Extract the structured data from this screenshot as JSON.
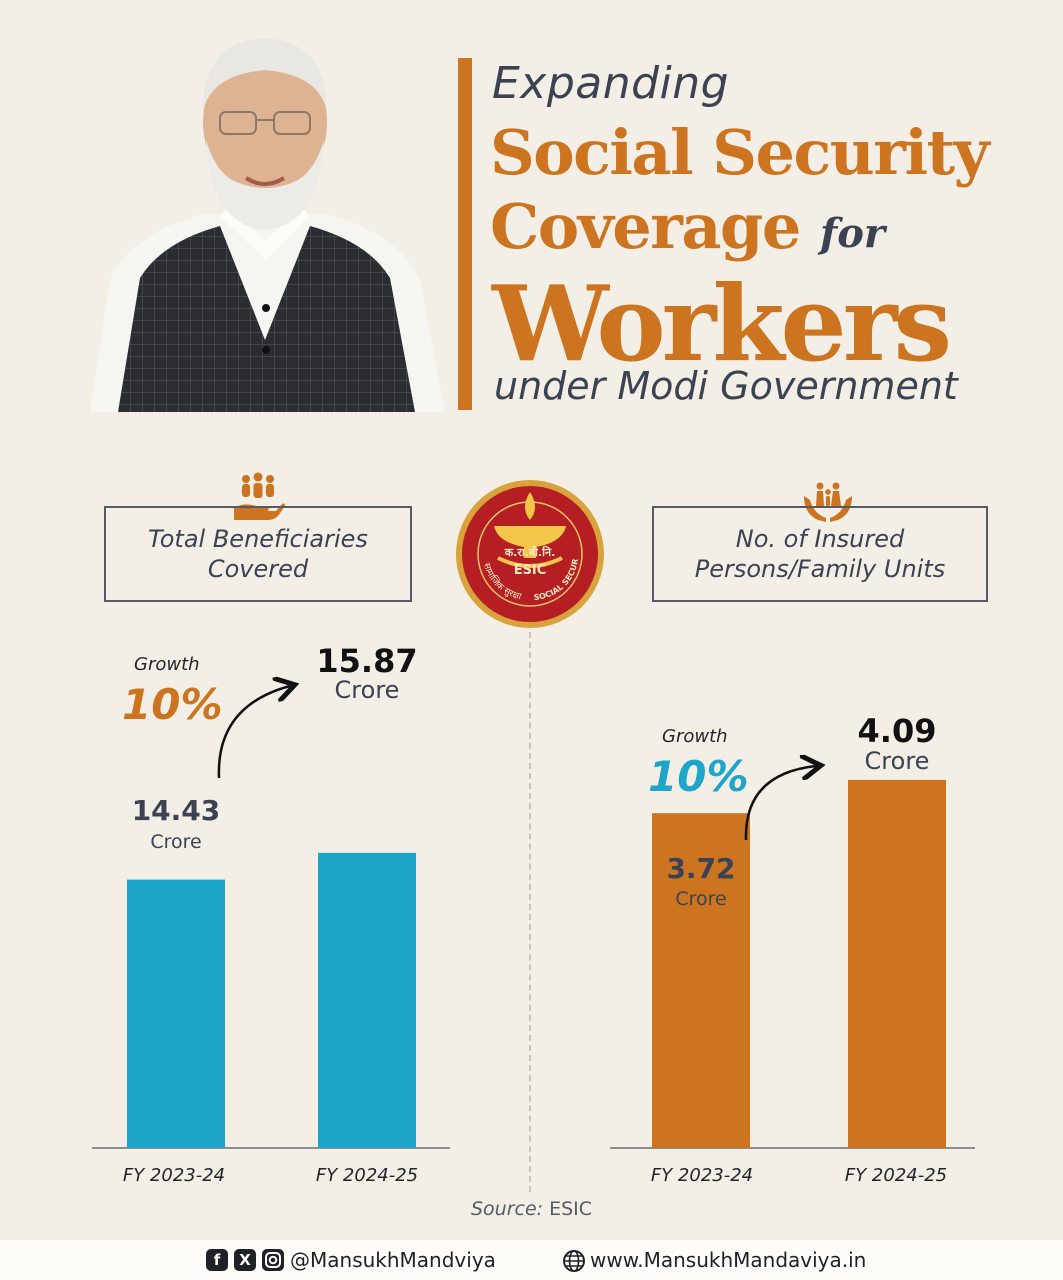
{
  "header": {
    "line1": "Expanding",
    "line2": "Social Security",
    "line3": "Coverage",
    "line3_suffix": "for",
    "line4": "Workers",
    "line5": "under Modi Government"
  },
  "logo": {
    "text_hindi_top": "क.रा.बी.नि.",
    "text_center": "ESIC",
    "text_left": "सामाजिक सुरक्षा",
    "text_right": "SOCIAL SECURITY"
  },
  "panels": [
    {
      "label": "Total Beneficiaries Covered",
      "label_line1": "Total Beneficiaries",
      "label_line2": "Covered",
      "growth_word": "Growth",
      "growth_pct": "10%",
      "growth_color": "#cd7420",
      "bar_color": "#1da6c9",
      "unit": "Crore",
      "values_text": [
        "14.43",
        "15.87"
      ]
    },
    {
      "label": "No. of Insured Persons/Family Units",
      "label_line1": "No. of Insured",
      "label_line2": "Persons/Family Units",
      "growth_word": "Growth",
      "growth_pct": "10%",
      "growth_color": "#1da6c9",
      "bar_color": "#cd7420",
      "unit": "Crore",
      "values_text": [
        "3.72",
        "4.09"
      ]
    }
  ],
  "chart_data": [
    {
      "type": "bar",
      "categories": [
        "FY 2023-24",
        "FY 2024-25"
      ],
      "values": [
        14.43,
        15.87
      ],
      "title": "Total Beneficiaries Covered",
      "ylabel": "Crore",
      "color": "#1da6c9"
    },
    {
      "type": "bar",
      "categories": [
        "FY 2023-24",
        "FY 2024-25"
      ],
      "values": [
        3.72,
        4.09
      ],
      "title": "No. of Insured Persons/Family Units",
      "ylabel": "Crore",
      "color": "#cd7420"
    }
  ],
  "source": {
    "prefix": "Source:",
    "name": "ESIC"
  },
  "footer": {
    "social_icons": [
      "facebook-icon",
      "x-icon",
      "instagram-icon"
    ],
    "handle": "@MansukhMandviya",
    "website_icon": "globe-icon",
    "website": "www.MansukhMandaviya.in"
  },
  "colors": {
    "orange": "#cd7420",
    "blue": "#1da6c9",
    "background": "#f3efe6",
    "dark_text": "#3b4252"
  }
}
